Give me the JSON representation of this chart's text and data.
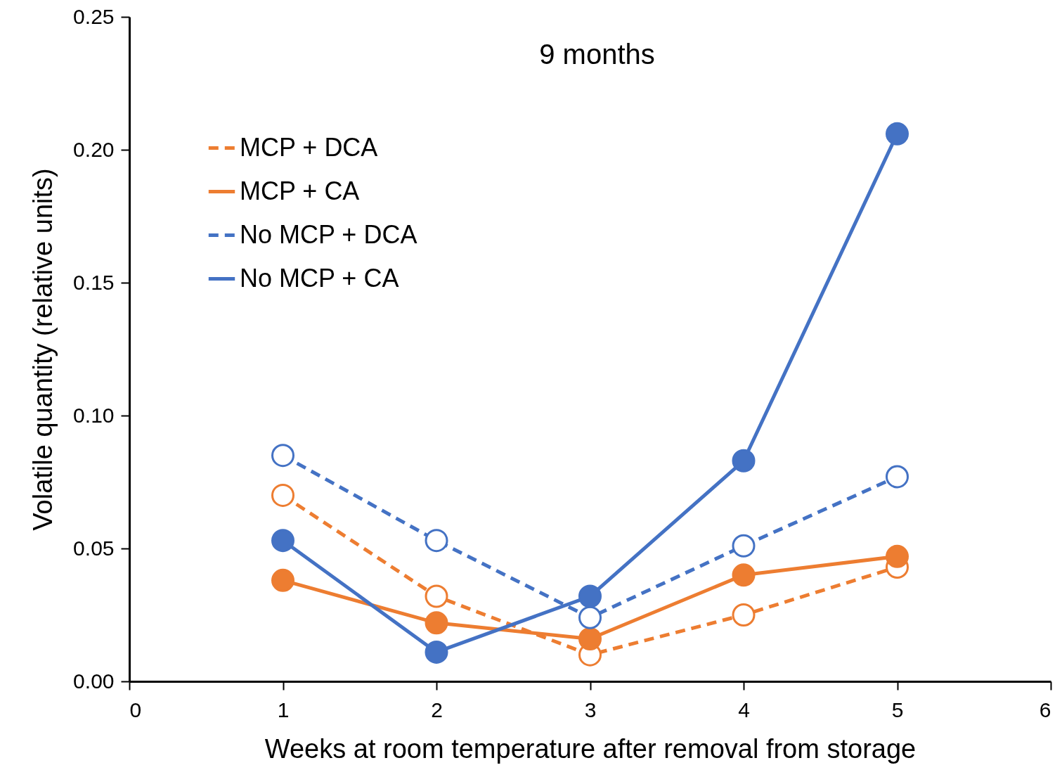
{
  "chart_data": {
    "type": "line",
    "title": "9 months",
    "xlabel": "Weeks at room temperature after removal from storage",
    "ylabel": "Volatile quantity (relative units)",
    "x": [
      1,
      2,
      3,
      4,
      5
    ],
    "series": [
      {
        "name": "MCP + DCA",
        "color": "#ed7d31",
        "line_style": "dashed",
        "values": [
          0.07,
          0.032,
          0.01,
          0.025,
          0.043
        ]
      },
      {
        "name": "MCP + CA",
        "color": "#ed7d31",
        "line_style": "solid",
        "values": [
          0.038,
          0.022,
          0.016,
          0.04,
          0.047
        ]
      },
      {
        "name": "No MCP + DCA",
        "color": "#4472c4",
        "line_style": "dashed",
        "values": [
          0.085,
          0.053,
          0.024,
          0.051,
          0.077
        ]
      },
      {
        "name": "No MCP + CA",
        "color": "#4472c4",
        "line_style": "solid",
        "values": [
          0.053,
          0.011,
          0.032,
          0.083,
          0.206
        ]
      }
    ],
    "xlim": [
      0,
      6
    ],
    "xticks": [
      0,
      1,
      2,
      3,
      4,
      5,
      6
    ],
    "ylim": [
      0,
      0.25
    ],
    "yticks": [
      {
        "value": 0,
        "label": "0.00"
      },
      {
        "value": 0.05,
        "label": "0.05"
      },
      {
        "value": 0.1,
        "label": "0.10"
      },
      {
        "value": 0.15,
        "label": "0.15"
      },
      {
        "value": 0.2,
        "label": "0.20"
      },
      {
        "value": 0.25,
        "label": "0.25"
      }
    ],
    "legend": "top left",
    "marker": "circle",
    "grid": false
  }
}
